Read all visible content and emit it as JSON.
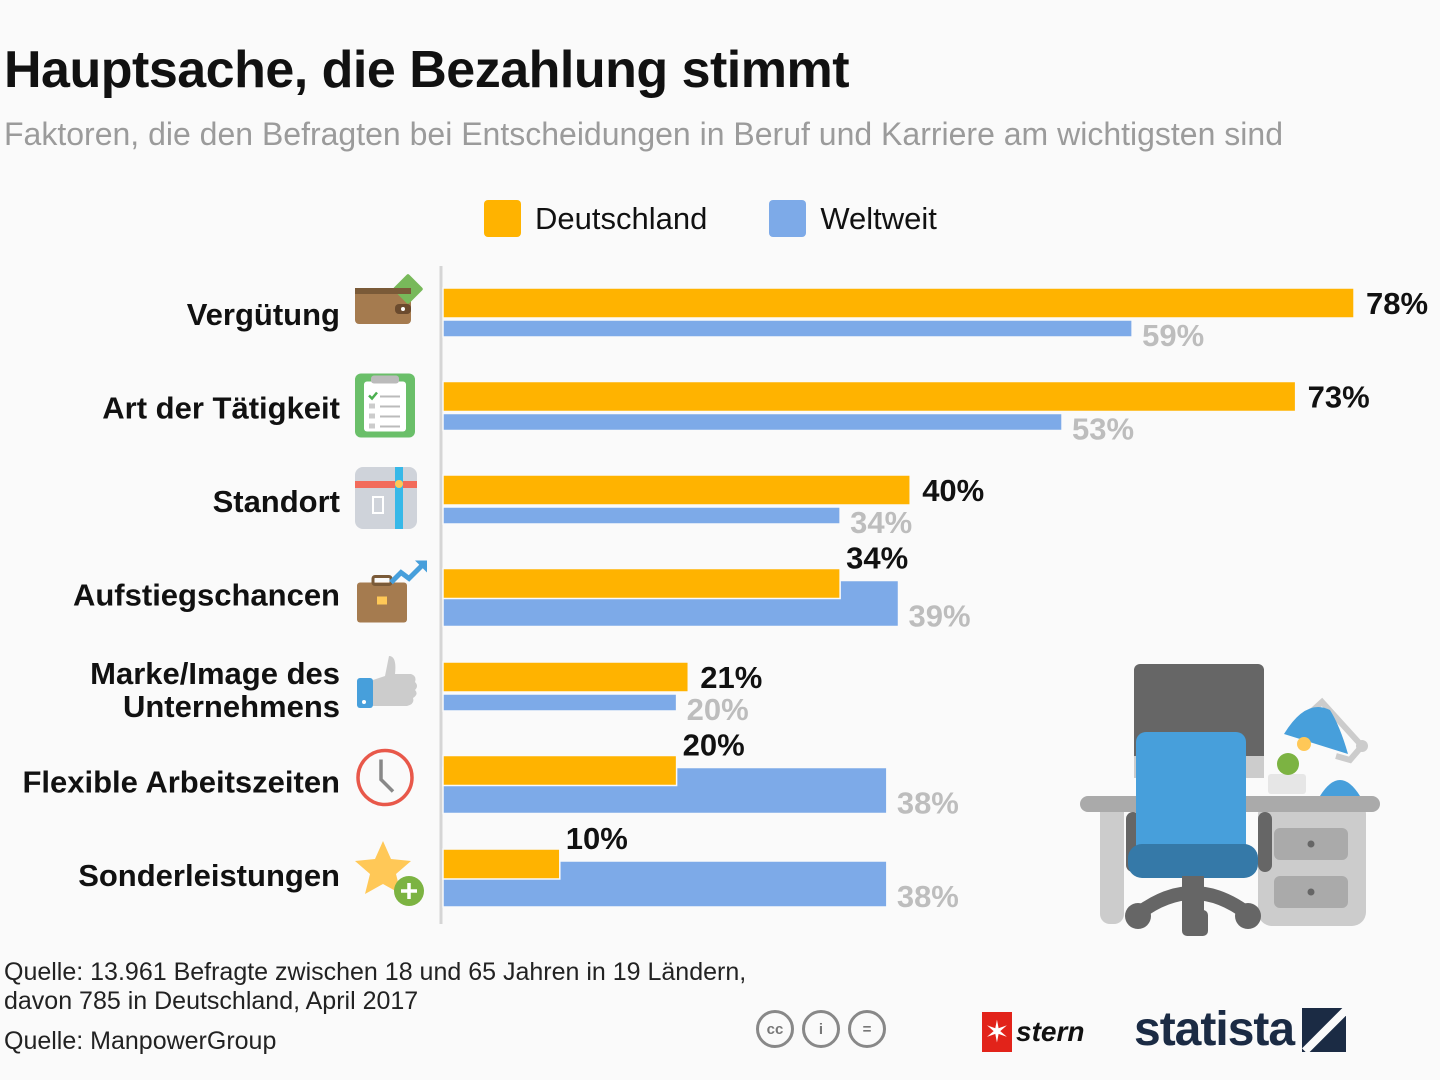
{
  "header": {
    "title": "Hauptsache, die Bezahlung stimmt",
    "subtitle": "Faktoren, die den Befragten bei Entscheidungen in Beruf und Karriere am wichtigsten sind"
  },
  "colors": {
    "deutschland": "#ffb300",
    "weltweit": "#7daae8",
    "axis": "#d5d5d5"
  },
  "legend": [
    {
      "label": "Deutschland",
      "color": "#ffb300"
    },
    {
      "label": "Weltweit",
      "color": "#7daae8"
    }
  ],
  "chart_data": {
    "type": "bar",
    "orientation": "horizontal",
    "title": "Hauptsache, die Bezahlung stimmt",
    "subtitle": "Faktoren, die den Befragten bei Entscheidungen in Beruf und Karriere am wichtigsten sind",
    "xlabel": "",
    "ylabel": "",
    "unit": "%",
    "xlim": [
      0,
      80
    ],
    "grid": false,
    "legend_position": "top-center",
    "categories": [
      "Vergütung",
      "Art der Tätigkeit",
      "Standort",
      "Aufstiegschancen",
      "Marke/Image des Unternehmens",
      "Flexible Arbeitszeiten",
      "Sonderleistungen"
    ],
    "category_lines": [
      [
        "Vergütung"
      ],
      [
        "Art der Tätigkeit"
      ],
      [
        "Standort"
      ],
      [
        "Aufstiegschancen"
      ],
      [
        "Marke/Image des",
        "Unternehmens"
      ],
      [
        "Flexible Arbeitszeiten"
      ],
      [
        "Sonderleistungen"
      ]
    ],
    "icons": [
      "wallet-icon",
      "clipboard-icon",
      "map-icon",
      "briefcase-growth-icon",
      "thumbs-up-icon",
      "clock-icon",
      "star-plus-icon"
    ],
    "series": [
      {
        "name": "Deutschland",
        "values": [
          78,
          73,
          40,
          34,
          21,
          20,
          10
        ],
        "labels": [
          "78%",
          "73%",
          "40%",
          "34%",
          "21%",
          "20%",
          "10%"
        ]
      },
      {
        "name": "Weltweit",
        "values": [
          59,
          53,
          34,
          39,
          20,
          38,
          38
        ],
        "labels": [
          "59%",
          "53%",
          "34%",
          "39%",
          "20%",
          "38%",
          "38%"
        ]
      }
    ]
  },
  "footer": {
    "source_note_line1": "Quelle: 13.961 Befragte zwischen 18 und 65 Jahren in 19 Ländern,",
    "source_note_line2": "davon 785 in Deutschland, April 2017",
    "source": "Quelle: ManpowerGroup",
    "license_icons": [
      "cc",
      "i",
      "="
    ],
    "stern_logo": "stern",
    "statista_logo": "statista"
  }
}
